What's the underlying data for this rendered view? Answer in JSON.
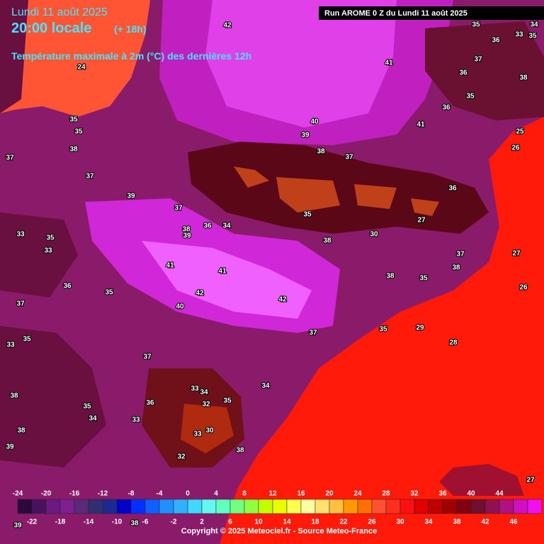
{
  "header": {
    "date": "Lundi 11 août 2025",
    "time": "20:00 locale",
    "lead": "(+ 18h)",
    "title": "Température maximale à 2m (°C) des dernières 12h",
    "run": "Run AROME 0 Z du Lundi 11 août 2025",
    "copyright": "Copyright © 2025 Meteociel.fr - Source Meteo-France"
  },
  "stations": [
    42,
    24,
    41,
    37,
    36,
    35,
    33,
    34,
    35,
    38,
    36,
    35,
    36,
    41,
    40,
    39,
    35,
    35,
    37,
    38,
    37,
    25,
    26,
    38,
    37,
    36,
    39,
    37,
    38,
    36,
    34,
    39,
    35,
    30,
    27,
    38,
    33,
    35,
    33,
    41,
    41,
    36,
    35,
    37,
    42,
    42,
    40,
    38,
    35,
    37,
    38,
    27,
    26,
    29,
    35,
    37,
    28,
    33,
    35,
    37,
    33,
    34,
    34,
    38,
    35,
    36,
    32,
    35,
    34,
    33,
    30,
    33,
    38,
    39,
    38,
    32,
    27,
    39,
    38
  ],
  "colorbar": {
    "ticks_top": [
      -24,
      -20,
      -16,
      -12,
      -8,
      -4,
      0,
      4,
      8,
      12,
      16,
      20,
      24,
      28,
      32,
      36,
      40,
      44
    ],
    "ticks_bottom": [
      -22,
      -18,
      -14,
      -10,
      -6,
      -2,
      2,
      6,
      10,
      14,
      18,
      22,
      26,
      30,
      34,
      38,
      42,
      46
    ],
    "colors": [
      "#2a0a3a",
      "#4a1060",
      "#6a1a80",
      "#802090",
      "#5a2a78",
      "#303070",
      "#1a2a90",
      "#0000c8",
      "#0030ff",
      "#1060ff",
      "#2090ff",
      "#30b0ff",
      "#40d8ff",
      "#60f8f0",
      "#60ffc0",
      "#70ff80",
      "#90ff40",
      "#c0ff00",
      "#e8ff00",
      "#ffff50",
      "#ffffa0",
      "#ffe070",
      "#ffc040",
      "#ff9900",
      "#ff7000",
      "#ff5030",
      "#ff3020",
      "#ff1010",
      "#e00000",
      "#c00000",
      "#a00000",
      "#800010",
      "#701030",
      "#901050",
      "#b01080",
      "#d010c0",
      "#f010f0",
      "#ff60ff"
    ]
  }
}
